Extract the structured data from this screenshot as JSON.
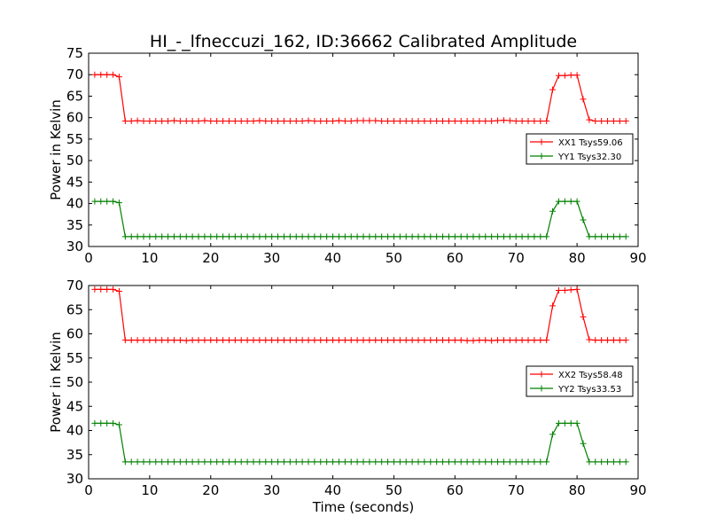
{
  "chart_data": [
    {
      "type": "line",
      "title": "HI_-_lfneccuzi_162, ID:36662 Calibrated Amplitude",
      "xlabel": "",
      "ylabel": "Power in Kelvin",
      "xlim": [
        0,
        90
      ],
      "ylim": [
        30,
        75
      ],
      "x_ticks": [
        "0",
        "10",
        "20",
        "30",
        "40",
        "50",
        "60",
        "70",
        "80",
        "90"
      ],
      "y_ticks": [
        "30",
        "35",
        "40",
        "45",
        "50",
        "55",
        "60",
        "65",
        "70",
        "75"
      ],
      "grid": false,
      "legend_position": "center-right",
      "x": [
        1,
        2,
        3,
        4,
        5,
        6,
        7,
        8,
        9,
        10,
        11,
        12,
        13,
        14,
        15,
        16,
        17,
        18,
        19,
        20,
        21,
        22,
        23,
        24,
        25,
        26,
        27,
        28,
        29,
        30,
        31,
        32,
        33,
        34,
        35,
        36,
        37,
        38,
        39,
        40,
        41,
        42,
        43,
        44,
        45,
        46,
        47,
        48,
        49,
        50,
        51,
        52,
        53,
        54,
        55,
        56,
        57,
        58,
        59,
        60,
        61,
        62,
        63,
        64,
        65,
        66,
        67,
        68,
        69,
        70,
        71,
        72,
        73,
        74,
        75,
        76,
        77,
        78,
        79,
        80,
        81,
        82,
        83,
        84,
        85,
        86,
        87,
        88
      ],
      "series": [
        {
          "name": "XX1 Tsys59.06",
          "color": "#ff0000",
          "values": [
            70,
            70,
            70,
            70,
            69.5,
            59.2,
            59.2,
            59.3,
            59.2,
            59.2,
            59.2,
            59.2,
            59.2,
            59.3,
            59.2,
            59.2,
            59.2,
            59.2,
            59.3,
            59.2,
            59.2,
            59.2,
            59.2,
            59.2,
            59.2,
            59.2,
            59.2,
            59.3,
            59.2,
            59.2,
            59.2,
            59.2,
            59.2,
            59.2,
            59.2,
            59.3,
            59.2,
            59.2,
            59.2,
            59.2,
            59.3,
            59.2,
            59.2,
            59.3,
            59.3,
            59.3,
            59.3,
            59.2,
            59.2,
            59.2,
            59.2,
            59.2,
            59.2,
            59.2,
            59.2,
            59.2,
            59.2,
            59.2,
            59.2,
            59.2,
            59.2,
            59.2,
            59.2,
            59.2,
            59.2,
            59.2,
            59.3,
            59.4,
            59.3,
            59.2,
            59.2,
            59.2,
            59.2,
            59.2,
            59.2,
            66.5,
            69.8,
            69.8,
            69.9,
            69.9,
            64.3,
            59.5,
            59.2,
            59.2,
            59.2,
            59.2,
            59.2,
            59.2
          ]
        },
        {
          "name": "YY1 Tsys32.30",
          "color": "#008000",
          "values": [
            40.5,
            40.5,
            40.5,
            40.5,
            40.2,
            32.3,
            32.3,
            32.3,
            32.3,
            32.3,
            32.3,
            32.3,
            32.3,
            32.3,
            32.3,
            32.3,
            32.3,
            32.3,
            32.3,
            32.3,
            32.3,
            32.3,
            32.3,
            32.3,
            32.3,
            32.3,
            32.3,
            32.3,
            32.3,
            32.3,
            32.3,
            32.3,
            32.3,
            32.3,
            32.3,
            32.3,
            32.3,
            32.3,
            32.3,
            32.3,
            32.3,
            32.3,
            32.3,
            32.3,
            32.3,
            32.3,
            32.3,
            32.3,
            32.3,
            32.3,
            32.3,
            32.3,
            32.3,
            32.3,
            32.3,
            32.3,
            32.3,
            32.3,
            32.3,
            32.3,
            32.3,
            32.3,
            32.3,
            32.3,
            32.3,
            32.3,
            32.3,
            32.3,
            32.3,
            32.3,
            32.3,
            32.3,
            32.3,
            32.3,
            32.3,
            38.2,
            40.5,
            40.5,
            40.5,
            40.5,
            36.2,
            32.3,
            32.3,
            32.3,
            32.3,
            32.3,
            32.3,
            32.3
          ]
        }
      ]
    },
    {
      "type": "line",
      "title": "",
      "xlabel": "Time (seconds)",
      "ylabel": "Power in Kelvin",
      "xlim": [
        0,
        90
      ],
      "ylim": [
        30,
        70
      ],
      "x_ticks": [
        "0",
        "10",
        "20",
        "30",
        "40",
        "50",
        "60",
        "70",
        "80",
        "90"
      ],
      "y_ticks": [
        "30",
        "35",
        "40",
        "45",
        "50",
        "55",
        "60",
        "65",
        "70"
      ],
      "grid": false,
      "legend_position": "center-right",
      "x": [
        1,
        2,
        3,
        4,
        5,
        6,
        7,
        8,
        9,
        10,
        11,
        12,
        13,
        14,
        15,
        16,
        17,
        18,
        19,
        20,
        21,
        22,
        23,
        24,
        25,
        26,
        27,
        28,
        29,
        30,
        31,
        32,
        33,
        34,
        35,
        36,
        37,
        38,
        39,
        40,
        41,
        42,
        43,
        44,
        45,
        46,
        47,
        48,
        49,
        50,
        51,
        52,
        53,
        54,
        55,
        56,
        57,
        58,
        59,
        60,
        61,
        62,
        63,
        64,
        65,
        66,
        67,
        68,
        69,
        70,
        71,
        72,
        73,
        74,
        75,
        76,
        77,
        78,
        79,
        80,
        81,
        82,
        83,
        84,
        85,
        86,
        87,
        88
      ],
      "series": [
        {
          "name": "XX2 Tsys58.48",
          "color": "#ff0000",
          "values": [
            69.2,
            69.2,
            69.2,
            69.2,
            68.8,
            58.7,
            58.7,
            58.7,
            58.7,
            58.7,
            58.7,
            58.7,
            58.7,
            58.7,
            58.7,
            58.6,
            58.7,
            58.7,
            58.7,
            58.7,
            58.7,
            58.7,
            58.7,
            58.7,
            58.7,
            58.7,
            58.7,
            58.7,
            58.7,
            58.7,
            58.7,
            58.7,
            58.7,
            58.7,
            58.7,
            58.7,
            58.7,
            58.7,
            58.7,
            58.7,
            58.7,
            58.7,
            58.7,
            58.7,
            58.7,
            58.7,
            58.7,
            58.7,
            58.7,
            58.7,
            58.7,
            58.7,
            58.7,
            58.7,
            58.7,
            58.7,
            58.7,
            58.7,
            58.7,
            58.7,
            58.7,
            58.6,
            58.6,
            58.7,
            58.7,
            58.6,
            58.7,
            58.7,
            58.7,
            58.7,
            58.7,
            58.7,
            58.7,
            58.7,
            58.7,
            65.8,
            69,
            69,
            69.1,
            69.2,
            63.5,
            58.8,
            58.7,
            58.7,
            58.7,
            58.7,
            58.7,
            58.7
          ]
        },
        {
          "name": "YY2 Tsys33.53",
          "color": "#008000",
          "values": [
            41.5,
            41.5,
            41.5,
            41.5,
            41.2,
            33.5,
            33.5,
            33.5,
            33.5,
            33.5,
            33.5,
            33.5,
            33.5,
            33.5,
            33.5,
            33.5,
            33.5,
            33.5,
            33.5,
            33.5,
            33.5,
            33.5,
            33.5,
            33.5,
            33.5,
            33.5,
            33.5,
            33.5,
            33.5,
            33.5,
            33.5,
            33.5,
            33.5,
            33.5,
            33.5,
            33.5,
            33.5,
            33.5,
            33.5,
            33.5,
            33.5,
            33.5,
            33.5,
            33.5,
            33.5,
            33.5,
            33.5,
            33.5,
            33.5,
            33.5,
            33.5,
            33.5,
            33.5,
            33.5,
            33.5,
            33.5,
            33.5,
            33.5,
            33.5,
            33.5,
            33.5,
            33.5,
            33.5,
            33.5,
            33.5,
            33.5,
            33.5,
            33.5,
            33.5,
            33.5,
            33.5,
            33.5,
            33.5,
            33.5,
            33.5,
            39.2,
            41.5,
            41.5,
            41.5,
            41.5,
            37.3,
            33.5,
            33.5,
            33.5,
            33.5,
            33.5,
            33.5,
            33.5
          ]
        }
      ]
    }
  ]
}
